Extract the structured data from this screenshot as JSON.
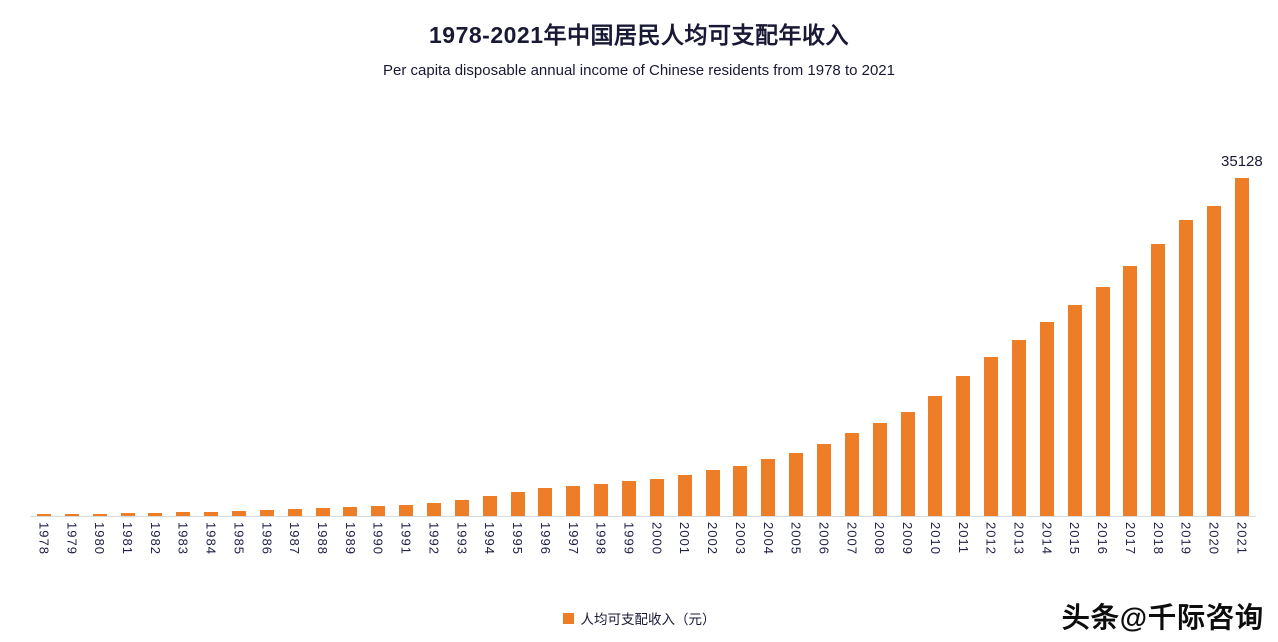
{
  "chart_data": {
    "type": "bar",
    "title": "1978-2021年中国居民人均可支配年收入",
    "subtitle": "Per capita disposable annual income of Chinese residents from 1978 to 2021",
    "legend": "人均可支配收入（元）",
    "bar_color": "#ED7D26",
    "text_color": "#191936",
    "ylim": [
      0,
      35128
    ],
    "y_axis_visible": false,
    "grid": false,
    "legend_position": "bottom-center",
    "categories": [
      "1978",
      "1979",
      "1980",
      "1981",
      "1982",
      "1983",
      "1984",
      "1985",
      "1986",
      "1987",
      "1988",
      "1989",
      "1990",
      "1991",
      "1992",
      "1993",
      "1994",
      "1995",
      "1996",
      "1997",
      "1998",
      "1999",
      "2000",
      "2001",
      "2002",
      "2003",
      "2004",
      "2005",
      "2006",
      "2007",
      "2008",
      "2009",
      "2010",
      "2011",
      "2012",
      "2013",
      "2014",
      "2015",
      "2016",
      "2017",
      "2018",
      "2019",
      "2020",
      "2021"
    ],
    "values": [
      171,
      208,
      250,
      292,
      340,
      392,
      455,
      535,
      610,
      700,
      815,
      920,
      1050,
      1190,
      1390,
      1700,
      2100,
      2500,
      2900,
      3150,
      3350,
      3600,
      3870,
      4300,
      4800,
      5250,
      5950,
      6600,
      7500,
      8600,
      9700,
      10800,
      12520,
      14551,
      16510,
      18311,
      20167,
      21966,
      23821,
      25974,
      28228,
      30733,
      32189,
      35128
    ],
    "annotation": {
      "category": "2021",
      "text": "35128"
    }
  },
  "footer": {
    "brand": "头条@千际咨询"
  }
}
